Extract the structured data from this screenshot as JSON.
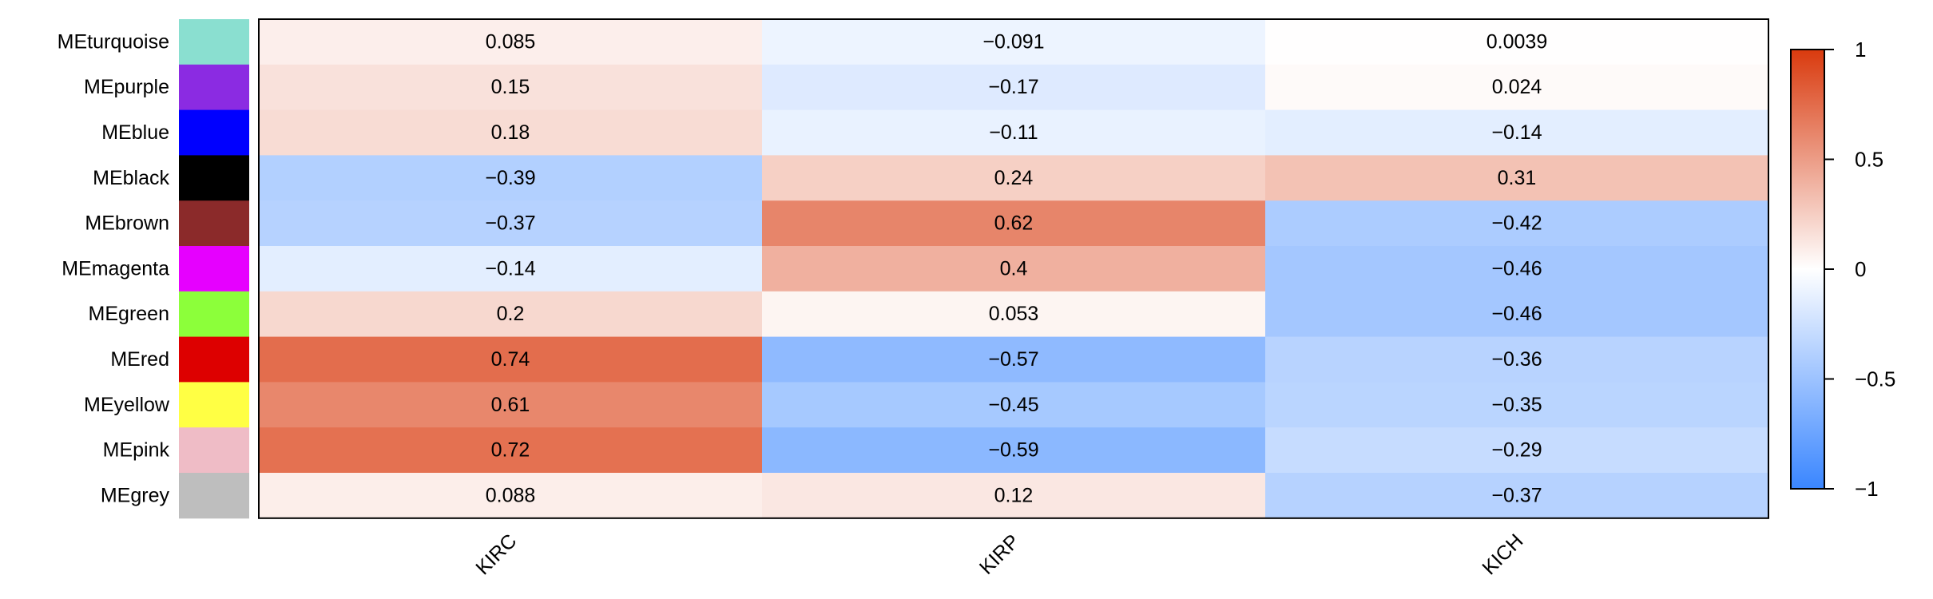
{
  "chart_data": {
    "type": "heatmap",
    "title": "",
    "xlabel": "",
    "ylabel": "",
    "rows": [
      "MEturquoise",
      "MEpurple",
      "MEblue",
      "MEblack",
      "MEbrown",
      "MEmagenta",
      "MEgreen",
      "MEred",
      "MEyellow",
      "MEpink",
      "MEgrey"
    ],
    "row_colors": [
      "#8ADFD0",
      "#8B2BE2",
      "#0000FF",
      "#000000",
      "#8B2A2A",
      "#E600FF",
      "#8CFF3A",
      "#DD0000",
      "#FFFF44",
      "#EFBCC6",
      "#BEBEBE"
    ],
    "columns": [
      "KIRC",
      "KIRP",
      "KICH"
    ],
    "values": [
      [
        0.085,
        -0.091,
        0.0039
      ],
      [
        0.15,
        -0.17,
        0.024
      ],
      [
        0.18,
        -0.11,
        -0.14
      ],
      [
        -0.39,
        0.24,
        0.31
      ],
      [
        -0.37,
        0.62,
        -0.42
      ],
      [
        -0.14,
        0.4,
        -0.46
      ],
      [
        0.2,
        0.053,
        -0.46
      ],
      [
        0.74,
        -0.57,
        -0.36
      ],
      [
        0.61,
        -0.45,
        -0.35
      ],
      [
        0.72,
        -0.59,
        -0.29
      ],
      [
        0.088,
        0.12,
        -0.37
      ]
    ],
    "value_labels": [
      [
        "0.085",
        "−0.091",
        "0.0039"
      ],
      [
        "0.15",
        "−0.17",
        "0.024"
      ],
      [
        "0.18",
        "−0.11",
        "−0.14"
      ],
      [
        "−0.39",
        "0.24",
        "0.31"
      ],
      [
        "−0.37",
        "0.62",
        "−0.42"
      ],
      [
        "−0.14",
        "0.4",
        "−0.46"
      ],
      [
        "0.2",
        "0.053",
        "−0.46"
      ],
      [
        "0.74",
        "−0.57",
        "−0.36"
      ],
      [
        "0.61",
        "−0.45",
        "−0.35"
      ],
      [
        "0.72",
        "−0.59",
        "−0.29"
      ],
      [
        "0.088",
        "0.12",
        "−0.37"
      ]
    ],
    "colorbar": {
      "range": [
        -1,
        1
      ],
      "ticks": [
        1,
        0.5,
        0,
        -0.5,
        -1
      ],
      "tick_labels": [
        "1",
        "0.5",
        "0",
        "−0.5",
        "−1"
      ],
      "low_color": "#3A86FF",
      "mid_color": "#FFFFFF",
      "high_color": "#D93A0E"
    },
    "legend": "right",
    "grid": false
  }
}
